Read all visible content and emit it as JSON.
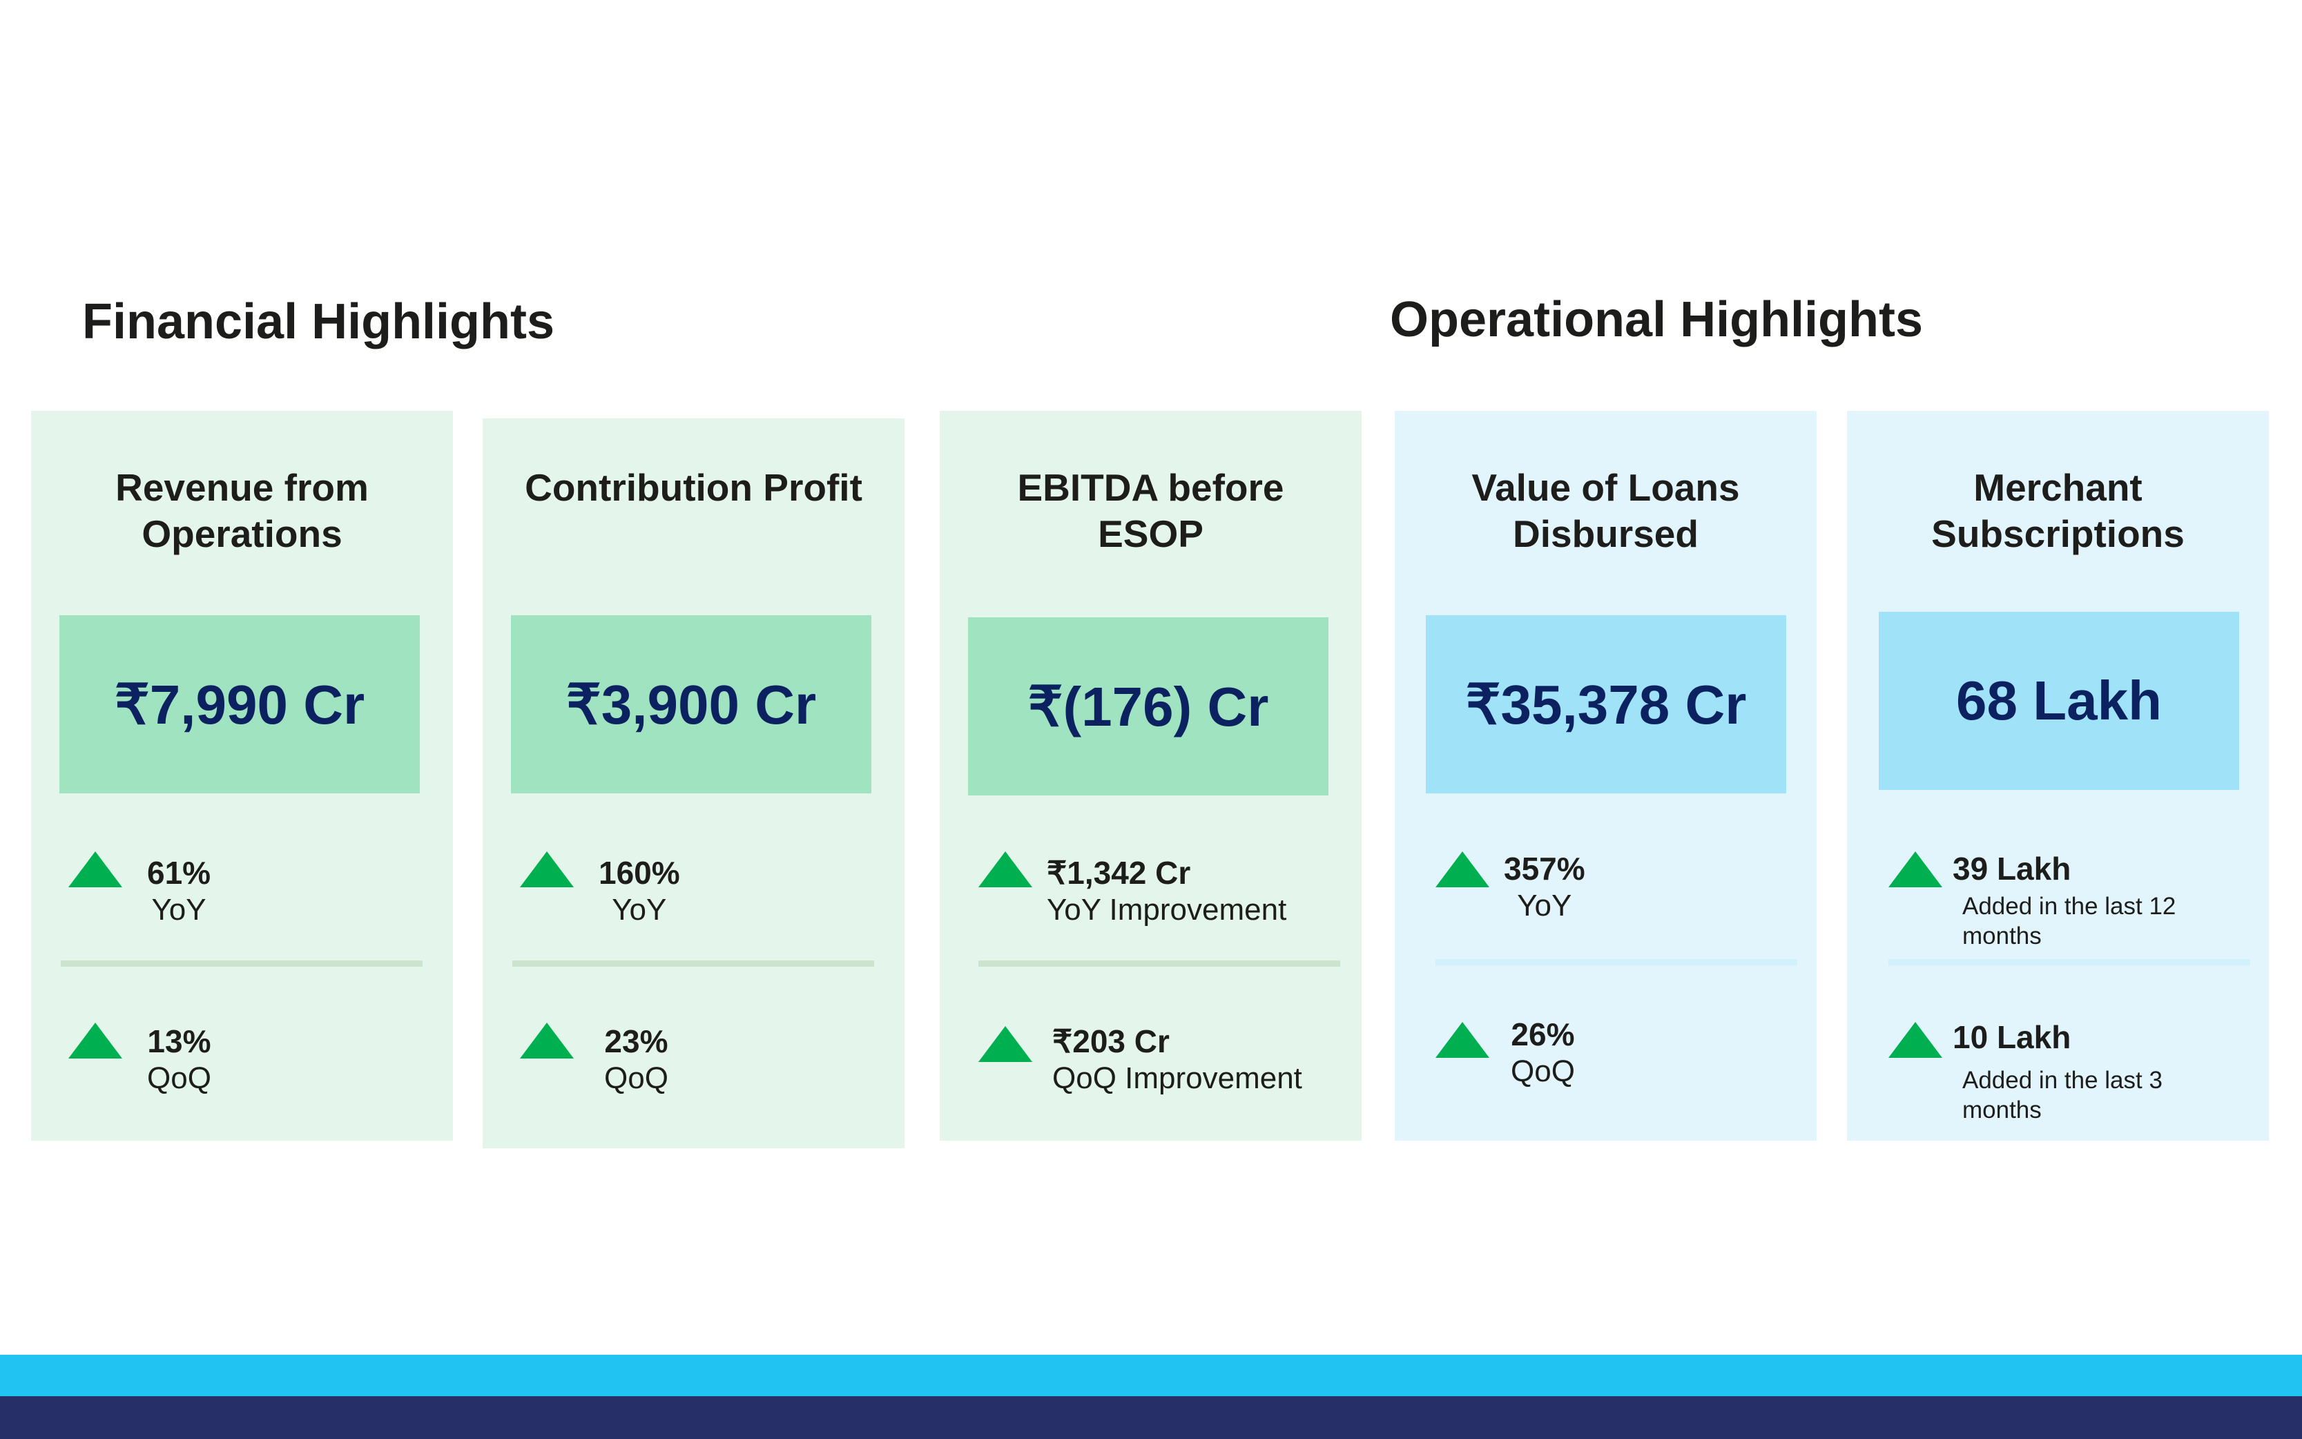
{
  "sections": {
    "financial": "Financial Highlights",
    "operational": "Operational Highlights"
  },
  "cards": [
    {
      "title": "Revenue from Operations",
      "value": "₹7,990 Cr",
      "m1": {
        "num": "61%",
        "sub": "YoY"
      },
      "m2": {
        "num": "13%",
        "sub": "QoQ"
      }
    },
    {
      "title": "Contribution Profit",
      "value": "₹3,900 Cr",
      "m1": {
        "num": "160%",
        "sub": "YoY"
      },
      "m2": {
        "num": "23%",
        "sub": "QoQ"
      }
    },
    {
      "title": "EBITDA before ESOP",
      "value": "₹(176) Cr",
      "m1": {
        "num": "₹1,342 Cr",
        "sub": "YoY Improvement"
      },
      "m2": {
        "num": "₹203 Cr",
        "sub": "QoQ Improvement"
      }
    },
    {
      "title": "Value of Loans Disbursed",
      "value": "₹35,378 Cr",
      "m1": {
        "num": "357%",
        "sub": "YoY"
      },
      "m2": {
        "num": "26%",
        "sub": "QoQ"
      }
    },
    {
      "title": "Merchant Subscriptions",
      "value": "68 Lakh",
      "m1": {
        "num": "39 Lakh",
        "sub": "Added in the last 12 months"
      },
      "m2": {
        "num": "10 Lakh",
        "sub": "Added in the last 3 months"
      }
    }
  ],
  "icons": {
    "trend": "triangle-up-icon"
  },
  "colors": {
    "up": "#00b050",
    "value_text": "#0b2160",
    "footer_light": "#20c3f1",
    "footer_dark": "#262f67"
  }
}
